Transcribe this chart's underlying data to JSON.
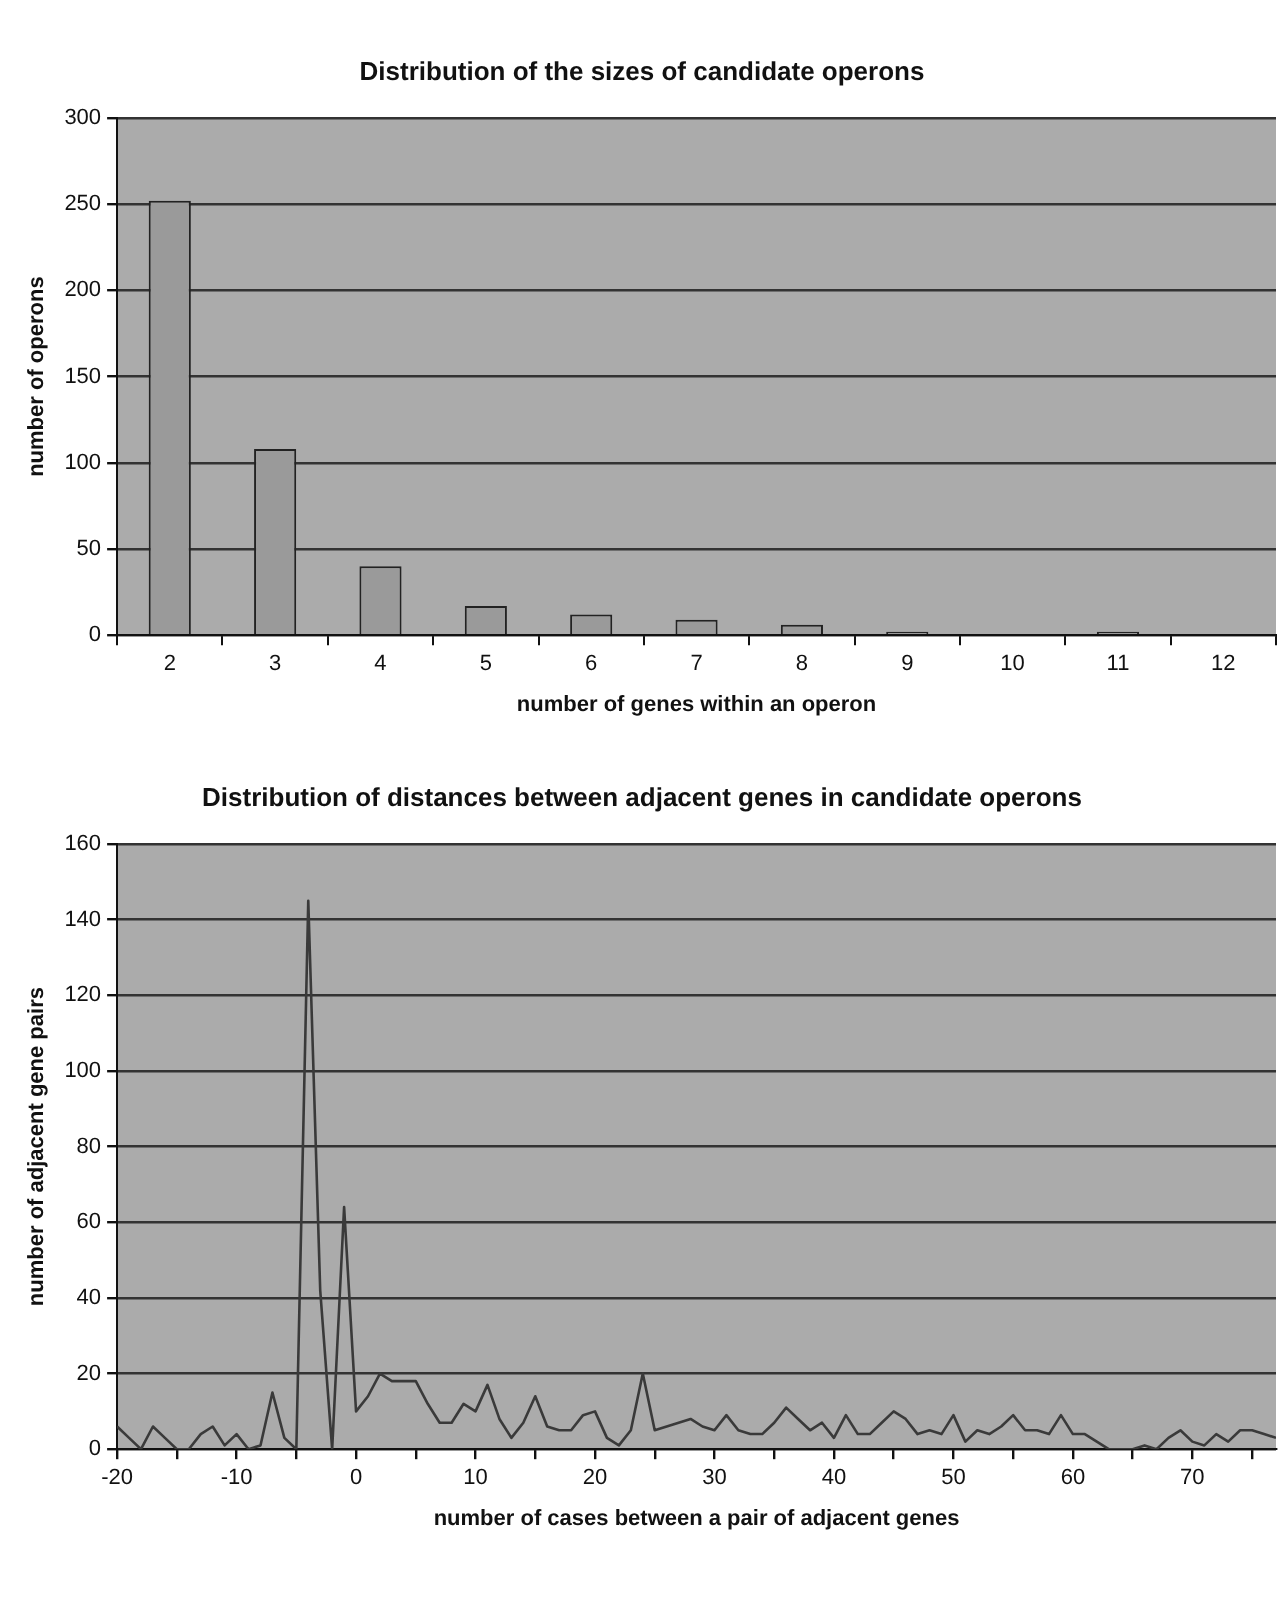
{
  "chart_data": [
    {
      "type": "bar",
      "title": "Distribution of the sizes of candidate operons",
      "xlabel": "number of genes within an operon",
      "ylabel": "number of operons",
      "categories": [
        "2",
        "3",
        "4",
        "5",
        "6",
        "7",
        "8",
        "9",
        "10",
        "11",
        "12"
      ],
      "values": [
        252,
        108,
        40,
        17,
        12,
        9,
        6,
        2,
        0,
        2,
        0
      ],
      "color": "#9a9a9a",
      "ylim": [
        0,
        300
      ],
      "yticks": [
        0,
        50,
        100,
        150,
        200,
        250,
        300
      ],
      "grid": "y",
      "legend": false
    },
    {
      "type": "line",
      "title": "Distribution of distances between adjacent genes in candidate operons",
      "xlabel": "number of cases between a pair of adjacent genes",
      "ylabel": "number of adjacent gene pairs",
      "x": [
        -20,
        -19,
        -18,
        -17,
        -16,
        -15,
        -14,
        -13,
        -12,
        -11,
        -10,
        -9,
        -8,
        -7,
        -6,
        -5,
        -4,
        -3,
        -2,
        -1,
        0,
        1,
        2,
        3,
        4,
        5,
        6,
        7,
        8,
        9,
        10,
        11,
        12,
        13,
        14,
        15,
        16,
        17,
        18,
        19,
        20,
        21,
        22,
        23,
        24,
        25,
        26,
        27,
        28,
        29,
        30,
        31,
        32,
        33,
        34,
        35,
        36,
        37,
        38,
        39,
        40,
        41,
        42,
        43,
        44,
        45,
        46,
        47,
        48,
        49,
        50,
        51,
        52,
        53,
        54,
        55,
        56,
        57,
        58,
        59,
        60,
        61,
        62,
        63,
        64,
        65,
        66,
        67,
        68,
        69,
        70,
        71,
        72,
        73,
        74,
        75,
        76,
        77
      ],
      "series": [
        {
          "color": "#3a3a3a",
          "values": [
            6,
            3,
            0,
            6,
            3,
            0,
            0,
            4,
            6,
            1,
            4,
            0,
            1,
            15,
            3,
            0,
            145,
            42,
            0,
            64,
            10,
            14,
            20,
            18,
            18,
            18,
            12,
            7,
            7,
            12,
            10,
            17,
            8,
            3,
            7,
            14,
            6,
            5,
            5,
            9,
            10,
            3,
            1,
            5,
            20,
            5,
            6,
            7,
            8,
            6,
            5,
            9,
            5,
            4,
            4,
            7,
            11,
            8,
            5,
            7,
            3,
            9,
            4,
            4,
            7,
            10,
            8,
            4,
            5,
            4,
            9,
            2,
            5,
            4,
            6,
            9,
            5,
            5,
            4,
            9,
            4,
            4,
            2,
            0,
            0,
            0,
            1,
            0,
            3,
            5,
            2,
            1,
            4,
            2,
            5,
            5,
            4,
            3
          ]
        }
      ],
      "xlim": [
        -20,
        77
      ],
      "xticks": [
        -20,
        {
          "value": -15,
          "label": null
        },
        -10,
        {
          "value": -5,
          "label": null
        },
        0,
        {
          "value": 5,
          "label": null
        },
        10,
        {
          "value": 15,
          "label": null
        },
        20,
        {
          "value": 25,
          "label": null
        },
        30,
        {
          "value": 35,
          "label": null
        },
        40,
        {
          "value": 45,
          "label": null
        },
        50,
        {
          "value": 55,
          "label": null
        },
        60,
        {
          "value": 65,
          "label": null
        },
        70,
        {
          "value": 75,
          "label": null
        }
      ],
      "ylim": [
        0,
        160
      ],
      "yticks": [
        0,
        20,
        40,
        60,
        80,
        100,
        120,
        140,
        160
      ],
      "grid": "y",
      "legend": false,
      "marker": "none",
      "line_style": "solid"
    }
  ]
}
